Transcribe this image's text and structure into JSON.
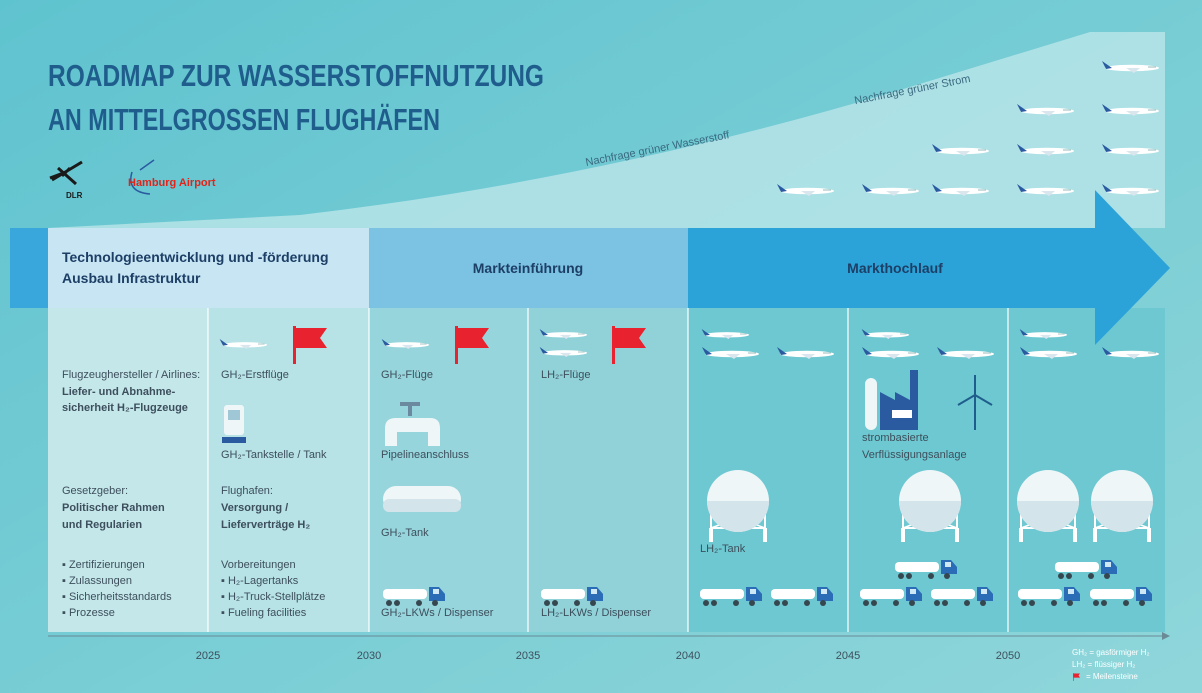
{
  "header": {
    "title": [
      "ROADMAP ZUR WASSERSTOFFNUTZUNG",
      "AN MITTELGROSSEN FLUGHÄFEN"
    ],
    "logos": [
      "DLR",
      "Hamburg Airport"
    ]
  },
  "demand": [
    "Nachfrage grüner Wasserstoff",
    "Nachfrage grüner Strom"
  ],
  "phases": [
    [
      "Technologieentwicklung und -förderung",
      "Ausbau Infrastruktur"
    ],
    [
      "Markteinführung"
    ],
    [
      "Markthochlauf"
    ]
  ],
  "columns": [
    [
      "Flugzeughersteller / Airlines:",
      "Liefer- und Abnahme-",
      "sicherheit H₂-Flugzeuge",
      "Gesetzgeber:",
      "Politischer Rahmen",
      "und Regularien",
      "▪ Zertifizierungen",
      "▪ Zulassungen",
      "▪ Sicherheitsstandards",
      "▪ Prozesse"
    ],
    [
      "GH₂-Erstflüge",
      "GH₂-Tankstelle / Tank",
      "Flughafen:",
      "Versorgung /",
      "Lieferverträge H₂",
      "Vorbereitungen",
      "▪ H₂-Lagertanks",
      "▪ H₂-Truck-Stellplätze",
      "▪ Fueling facilities"
    ],
    [
      "GH₂-Flüge",
      "Pipelineanschluss",
      "GH₂-Tank",
      "GH₂-LKWs / Dispenser"
    ],
    [
      "LH₂-Flüge",
      "LH₂-LKWs / Dispenser"
    ],
    [
      "LH₂-Tank"
    ],
    [
      "strombasierte",
      "Verflüssigungsanlage"
    ]
  ],
  "timeline": [
    "2025",
    "2030",
    "2035",
    "2040",
    "2045",
    "2050"
  ],
  "legend": [
    "GH₂ = gasförmiger H₂",
    "LH₂ = flüssiger H₂",
    "= Meilensteine"
  ]
}
